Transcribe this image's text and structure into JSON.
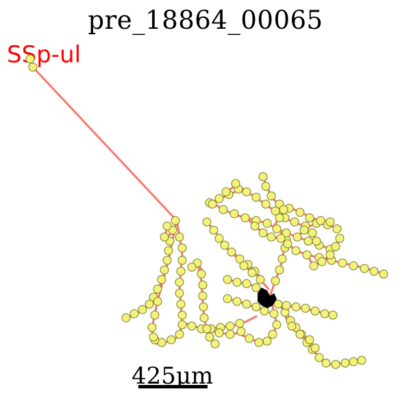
{
  "figure": {
    "title": "pre_18864_00065",
    "region_label": "SSp-ul",
    "scale_bar_label": "425µm"
  },
  "colors": {
    "title": "#000000",
    "region_label": "#ff0000",
    "neurite": "#f47a6e",
    "node_fill": "#f3f27a",
    "node_edge": "#7a7a2a",
    "soma": "#000000"
  }
}
